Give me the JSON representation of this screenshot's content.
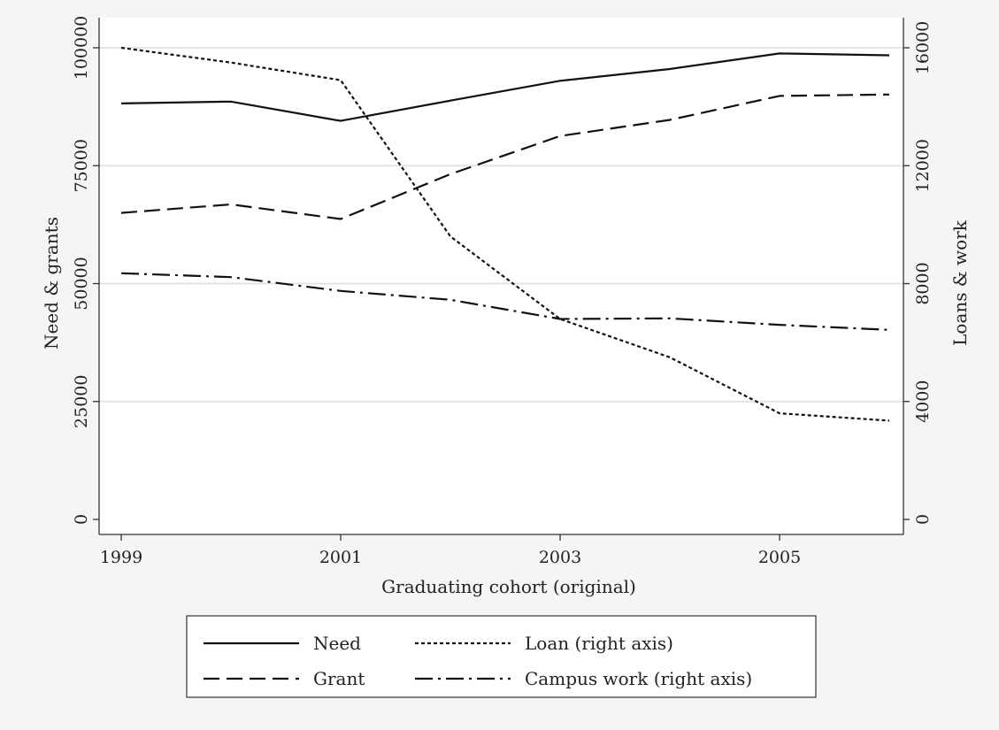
{
  "chart_data": {
    "type": "line",
    "title": "",
    "x": [
      1999,
      2000,
      2001,
      2002,
      2003,
      2004,
      2005,
      2006
    ],
    "xlabel": "Graduating cohort (original)",
    "xticks": [
      "1999",
      "2001",
      "2003",
      "2005"
    ],
    "xtick_values": [
      1999,
      2001,
      2003,
      2005
    ],
    "xlim": [
      1999,
      2006
    ],
    "ylabel_left": "Need & grants",
    "ylabel_right": "Loans & work",
    "ylim_left": [
      0,
      100000
    ],
    "ylim_right": [
      0,
      16000
    ],
    "yticks_left": [
      "0",
      "25000",
      "50000",
      "75000",
      "100000"
    ],
    "yticks_left_values": [
      0,
      25000,
      50000,
      75000,
      100000
    ],
    "yticks_right": [
      "0",
      "4000",
      "8000",
      "12000",
      "16000"
    ],
    "yticks_right_values": [
      0,
      4000,
      8000,
      12000,
      16000
    ],
    "grid": true,
    "legend_position": "bottom",
    "series": [
      {
        "name": "Need",
        "axis": "left",
        "style": "solid",
        "values": [
          88200,
          88600,
          84500,
          88800,
          93000,
          95500,
          98800,
          98400
        ]
      },
      {
        "name": "Grant",
        "axis": "left",
        "style": "dash",
        "values": [
          65000,
          66800,
          63700,
          73200,
          81300,
          84700,
          89800,
          90100
        ]
      },
      {
        "name": "Loan (right axis)",
        "axis": "right",
        "style": "dot",
        "values": [
          16000,
          15500,
          14900,
          9600,
          6800,
          5500,
          3600,
          3350
        ]
      },
      {
        "name": "Campus work (right axis)",
        "axis": "right",
        "style": "dashdot",
        "values": [
          8350,
          8220,
          7750,
          7450,
          6800,
          6820,
          6600,
          6430
        ]
      }
    ]
  }
}
